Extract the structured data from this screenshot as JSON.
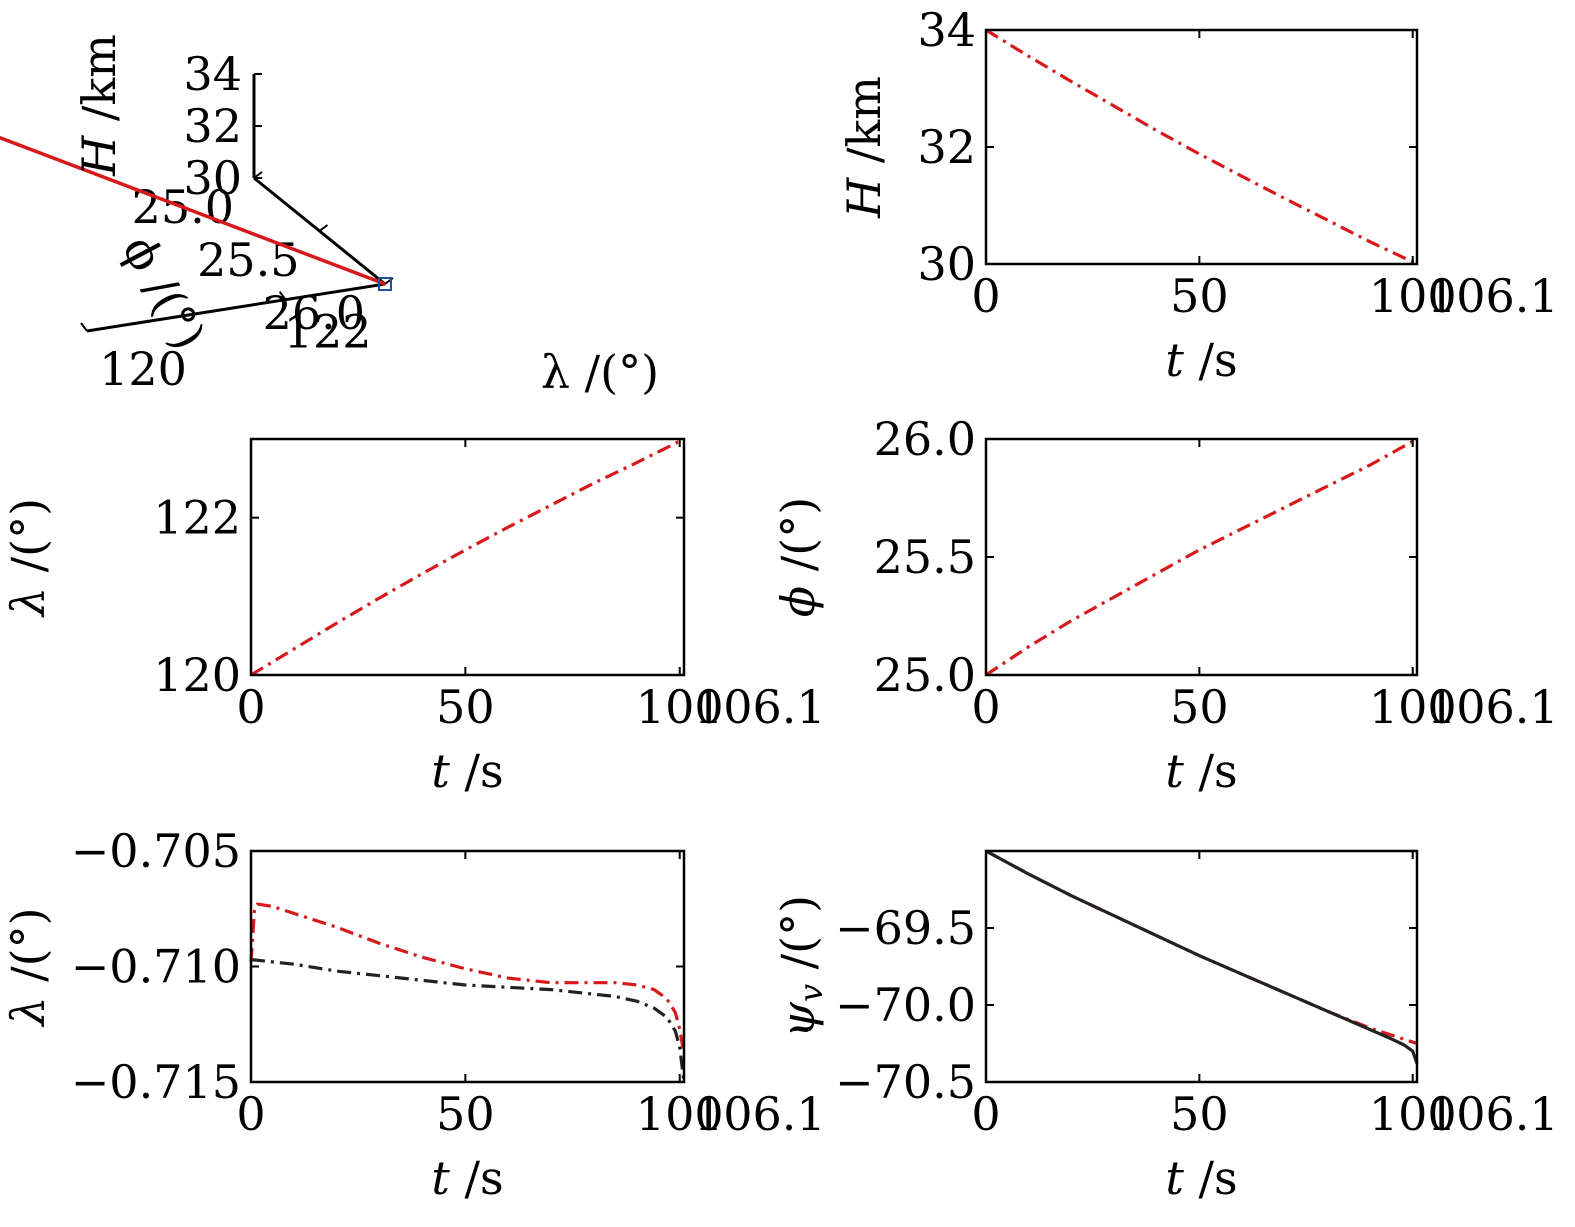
{
  "chart_data": [
    {
      "id": "traj3d",
      "type": "line3d",
      "xlabel": "λ /(°)",
      "ylabel": "ϕ /(°)",
      "zlabel_sym": "H",
      "zlabel_unit": "/km",
      "lambda_ticks": [
        "120",
        "122"
      ],
      "phi_ticks": [
        "25.0",
        "25.5",
        "26.0"
      ],
      "h_ticks": [
        "30",
        "32",
        "34"
      ],
      "series": [
        {
          "color": "#d7191c",
          "points": [
            {
              "lambda": 120,
              "phi": 25,
              "H": 34
            },
            {
              "lambda": 123,
              "phi": 26,
              "H": 30
            }
          ]
        }
      ],
      "markers": [
        {
          "shape": "star",
          "color": "#1f4e9c",
          "lambda": 120,
          "phi": 25,
          "H": 34
        },
        {
          "shape": "square",
          "color": "#1f4e9c",
          "lambda": 123,
          "phi": 26,
          "H": 30
        }
      ]
    },
    {
      "id": "H_t",
      "type": "line",
      "xlabel_sym": "t",
      "xlabel_unit": "/s",
      "ylabel_sym": "H",
      "ylabel_unit": "/km",
      "xlim": [
        0,
        101
      ],
      "ylim": [
        30,
        34
      ],
      "xticks": [
        0,
        50,
        100
      ],
      "yticks": [
        30,
        32,
        34
      ],
      "xtick_labels": [
        "0",
        "50",
        "100"
      ],
      "ytick_labels": [
        "30",
        "32",
        "34"
      ],
      "x_extra_label": "106.1",
      "series": [
        {
          "color": "#d7191c",
          "dash": "dashdot",
          "x": [
            0,
            10,
            20,
            30,
            40,
            50,
            60,
            70,
            80,
            90,
            101
          ],
          "y": [
            34,
            33.55,
            33.12,
            32.7,
            32.28,
            31.88,
            31.5,
            31.12,
            30.75,
            30.38,
            30.0
          ]
        }
      ]
    },
    {
      "id": "lambda_t",
      "type": "line",
      "xlabel_sym": "t",
      "xlabel_unit": "/s",
      "ylabel_sym": "λ",
      "ylabel_unit": "/(°)",
      "xlim": [
        0,
        101
      ],
      "ylim": [
        120,
        123
      ],
      "xticks": [
        0,
        50,
        100
      ],
      "yticks": [
        120,
        122
      ],
      "xtick_labels": [
        "0",
        "50",
        "100"
      ],
      "ytick_labels": [
        "120",
        "122"
      ],
      "x_extra_label": "106.1",
      "series": [
        {
          "color": "#d7191c",
          "dash": "dashdot",
          "x": [
            0,
            10,
            20,
            30,
            40,
            50,
            60,
            70,
            80,
            90,
            101
          ],
          "y": [
            120,
            120.33,
            120.66,
            120.98,
            121.29,
            121.59,
            121.88,
            122.16,
            122.44,
            122.7,
            123.0
          ]
        }
      ]
    },
    {
      "id": "phi_t",
      "type": "line",
      "xlabel_sym": "t",
      "xlabel_unit": "/s",
      "ylabel_sym": "ϕ",
      "ylabel_unit": "/(°)",
      "xlim": [
        0,
        101
      ],
      "ylim": [
        25,
        26
      ],
      "xticks": [
        0,
        50,
        100
      ],
      "yticks": [
        25,
        25.5,
        26
      ],
      "xtick_labels": [
        "0",
        "50",
        "100"
      ],
      "ytick_labels": [
        "25.0",
        "25.5",
        "26.0"
      ],
      "x_extra_label": "106.1",
      "series": [
        {
          "color": "#d7191c",
          "dash": "dashdot",
          "x": [
            0,
            10,
            20,
            30,
            40,
            50,
            60,
            70,
            80,
            90,
            101
          ],
          "y": [
            25.0,
            25.12,
            25.23,
            25.33,
            25.43,
            25.53,
            25.62,
            25.71,
            25.8,
            25.89,
            26.0
          ]
        }
      ]
    },
    {
      "id": "lambda2_t",
      "type": "line",
      "xlabel_sym": "t",
      "xlabel_unit": "/s",
      "ylabel_sym": "λ",
      "ylabel_unit": "/(°)",
      "xlim": [
        0,
        101
      ],
      "ylim": [
        -0.715,
        -0.705
      ],
      "xticks": [
        0,
        50,
        100
      ],
      "yticks": [
        -0.715,
        -0.71,
        -0.705
      ],
      "xtick_labels": [
        "0",
        "50",
        "100"
      ],
      "ytick_labels": [
        "−0.715",
        "−0.710",
        "−0.705"
      ],
      "x_extra_label": "106.1",
      "series": [
        {
          "color": "#d7191c",
          "dash": "dashdot",
          "x": [
            0,
            0.8,
            1.5,
            5,
            10,
            20,
            30,
            40,
            50,
            60,
            70,
            75,
            80,
            85,
            90,
            94,
            97,
            99,
            100,
            101
          ],
          "y": [
            -0.7098,
            -0.7076,
            -0.7073,
            -0.7074,
            -0.7077,
            -0.7083,
            -0.709,
            -0.7096,
            -0.7101,
            -0.7105,
            -0.7107,
            -0.7107,
            -0.7107,
            -0.7107,
            -0.7108,
            -0.711,
            -0.7114,
            -0.712,
            -0.7127,
            -0.7138
          ]
        },
        {
          "color": "#222222",
          "dash": "dashdot",
          "x": [
            0,
            10,
            20,
            30,
            40,
            50,
            60,
            70,
            80,
            85,
            90,
            94,
            97,
            99,
            100,
            101
          ],
          "y": [
            -0.7097,
            -0.7099,
            -0.7102,
            -0.7104,
            -0.7106,
            -0.7108,
            -0.7109,
            -0.711,
            -0.7112,
            -0.7113,
            -0.7115,
            -0.7118,
            -0.7122,
            -0.7128,
            -0.7135,
            -0.715
          ]
        }
      ]
    },
    {
      "id": "psi_t",
      "type": "line",
      "xlabel_sym": "t",
      "xlabel_unit": "/s",
      "ylabel_sym": "ψ",
      "ylabel_sub": "v",
      "ylabel_unit": "/(°)",
      "xlim": [
        0,
        101
      ],
      "ylim": [
        -70.5,
        -69.0
      ],
      "xticks": [
        0,
        50,
        100
      ],
      "yticks": [
        -70.5,
        -70.0,
        -69.5
      ],
      "xtick_labels": [
        "0",
        "50",
        "100"
      ],
      "ytick_labels": [
        "−70.5",
        "−70.0",
        "−69.5"
      ],
      "x_extra_label": "106.1",
      "series": [
        {
          "color": "#d7191c",
          "dash": "dashdot",
          "x": [
            0,
            10,
            20,
            30,
            40,
            50,
            60,
            70,
            80,
            90,
            101
          ],
          "y": [
            -69.0,
            -69.15,
            -69.29,
            -69.42,
            -69.55,
            -69.68,
            -69.8,
            -69.92,
            -70.04,
            -70.15,
            -70.25
          ]
        },
        {
          "color": "#222222",
          "dash": "solid",
          "x": [
            0,
            10,
            20,
            30,
            40,
            50,
            60,
            70,
            80,
            90,
            95,
            98,
            100,
            101
          ],
          "y": [
            -69.0,
            -69.15,
            -69.29,
            -69.42,
            -69.55,
            -69.68,
            -69.8,
            -69.92,
            -70.04,
            -70.16,
            -70.22,
            -70.26,
            -70.3,
            -70.38
          ]
        }
      ]
    }
  ]
}
